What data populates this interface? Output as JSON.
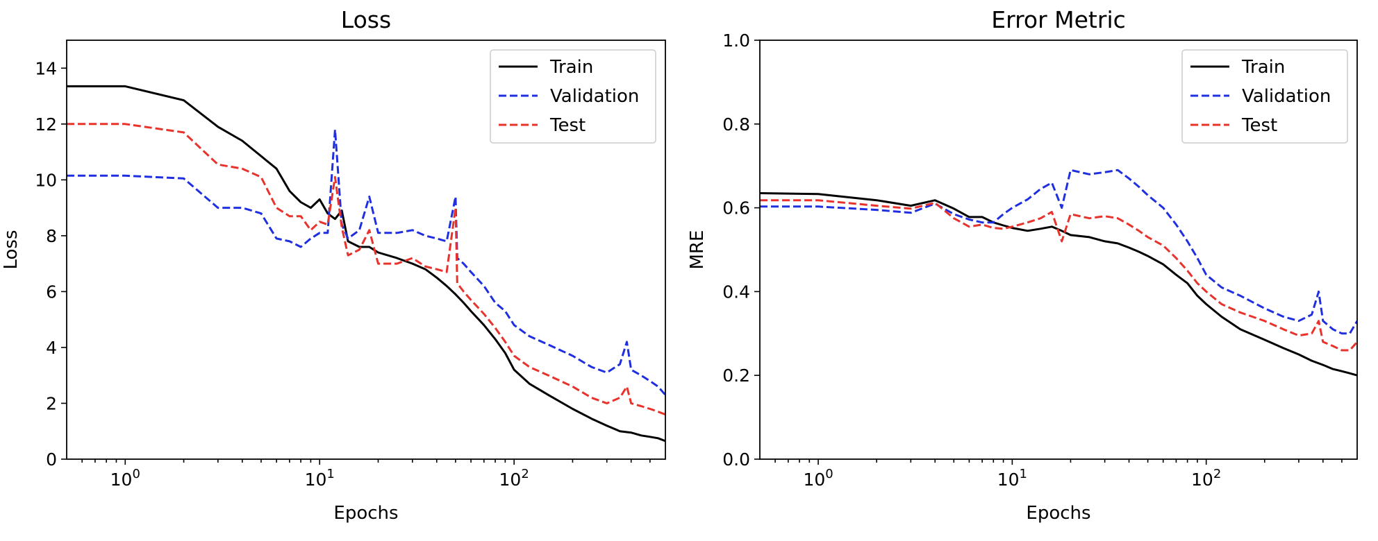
{
  "chart_data": [
    {
      "type": "line",
      "title": "Loss",
      "xlabel": "Epochs",
      "ylabel": "Loss",
      "xscale": "log",
      "xlim": [
        0.5,
        600
      ],
      "ylim": [
        0,
        15
      ],
      "xticks": [
        {
          "value": 1,
          "base": "10",
          "exp": "0"
        },
        {
          "value": 10,
          "base": "10",
          "exp": "1"
        },
        {
          "value": 100,
          "base": "10",
          "exp": "2"
        }
      ],
      "yticks": [
        0,
        2,
        4,
        6,
        8,
        10,
        12,
        14
      ],
      "legend": "top-right",
      "grid": false,
      "series": [
        {
          "name": "Train",
          "color": "#000000",
          "dash": "solid",
          "points": [
            [
              0.5,
              13.35
            ],
            [
              1,
              13.35
            ],
            [
              2,
              12.85
            ],
            [
              3,
              11.9
            ],
            [
              4,
              11.4
            ],
            [
              6,
              10.4
            ],
            [
              7,
              9.6
            ],
            [
              8,
              9.2
            ],
            [
              9,
              9.0
            ],
            [
              10,
              9.3
            ],
            [
              11,
              8.8
            ],
            [
              12,
              8.6
            ],
            [
              13,
              8.9
            ],
            [
              14,
              7.8
            ],
            [
              16,
              7.6
            ],
            [
              18,
              7.6
            ],
            [
              20,
              7.4
            ],
            [
              25,
              7.2
            ],
            [
              30,
              7.0
            ],
            [
              35,
              6.8
            ],
            [
              40,
              6.5
            ],
            [
              45,
              6.2
            ],
            [
              50,
              5.9
            ],
            [
              55,
              5.6
            ],
            [
              60,
              5.3
            ],
            [
              70,
              4.8
            ],
            [
              80,
              4.3
            ],
            [
              90,
              3.8
            ],
            [
              100,
              3.2
            ],
            [
              120,
              2.7
            ],
            [
              150,
              2.3
            ],
            [
              200,
              1.8
            ],
            [
              250,
              1.45
            ],
            [
              300,
              1.2
            ],
            [
              350,
              1.0
            ],
            [
              400,
              0.95
            ],
            [
              450,
              0.85
            ],
            [
              500,
              0.8
            ],
            [
              550,
              0.75
            ],
            [
              600,
              0.65
            ]
          ]
        },
        {
          "name": "Validation",
          "color": "#1f2fe0",
          "dash": "dashed",
          "points": [
            [
              0.5,
              10.15
            ],
            [
              1,
              10.15
            ],
            [
              2,
              10.05
            ],
            [
              3,
              9.0
            ],
            [
              4,
              9.0
            ],
            [
              5,
              8.8
            ],
            [
              6,
              7.9
            ],
            [
              7,
              7.8
            ],
            [
              8,
              7.6
            ],
            [
              9,
              7.9
            ],
            [
              10,
              8.1
            ],
            [
              11,
              8.1
            ],
            [
              12,
              11.8
            ],
            [
              13,
              8.4
            ],
            [
              14,
              7.9
            ],
            [
              16,
              8.2
            ],
            [
              18,
              9.4
            ],
            [
              20,
              8.1
            ],
            [
              25,
              8.1
            ],
            [
              30,
              8.2
            ],
            [
              35,
              8.0
            ],
            [
              40,
              7.9
            ],
            [
              45,
              7.8
            ],
            [
              50,
              9.4
            ],
            [
              51,
              7.2
            ],
            [
              55,
              7.0
            ],
            [
              60,
              6.7
            ],
            [
              70,
              6.2
            ],
            [
              80,
              5.6
            ],
            [
              90,
              5.3
            ],
            [
              100,
              4.8
            ],
            [
              120,
              4.4
            ],
            [
              150,
              4.1
            ],
            [
              200,
              3.7
            ],
            [
              250,
              3.3
            ],
            [
              300,
              3.1
            ],
            [
              350,
              3.4
            ],
            [
              380,
              4.2
            ],
            [
              400,
              3.2
            ],
            [
              450,
              3.0
            ],
            [
              500,
              2.8
            ],
            [
              550,
              2.6
            ],
            [
              600,
              2.3
            ]
          ]
        },
        {
          "name": "Test",
          "color": "#e8322c",
          "dash": "dashed",
          "points": [
            [
              0.5,
              12.0
            ],
            [
              1,
              12.0
            ],
            [
              2,
              11.7
            ],
            [
              3,
              10.55
            ],
            [
              4,
              10.4
            ],
            [
              5,
              10.1
            ],
            [
              6,
              9.0
            ],
            [
              7,
              8.7
            ],
            [
              8,
              8.7
            ],
            [
              9,
              8.2
            ],
            [
              10,
              8.5
            ],
            [
              11,
              8.4
            ],
            [
              12,
              10.1
            ],
            [
              13,
              8.3
            ],
            [
              14,
              7.3
            ],
            [
              16,
              7.5
            ],
            [
              18,
              8.2
            ],
            [
              20,
              7.0
            ],
            [
              25,
              7.0
            ],
            [
              30,
              7.2
            ],
            [
              35,
              6.9
            ],
            [
              40,
              6.8
            ],
            [
              45,
              6.7
            ],
            [
              50,
              9.0
            ],
            [
              51,
              6.3
            ],
            [
              55,
              6.0
            ],
            [
              60,
              5.7
            ],
            [
              70,
              5.2
            ],
            [
              80,
              4.7
            ],
            [
              90,
              4.2
            ],
            [
              100,
              3.7
            ],
            [
              120,
              3.3
            ],
            [
              150,
              3.0
            ],
            [
              200,
              2.6
            ],
            [
              250,
              2.2
            ],
            [
              300,
              2.0
            ],
            [
              350,
              2.2
            ],
            [
              380,
              2.6
            ],
            [
              400,
              2.0
            ],
            [
              450,
              1.9
            ],
            [
              500,
              1.8
            ],
            [
              550,
              1.7
            ],
            [
              600,
              1.6
            ]
          ]
        }
      ]
    },
    {
      "type": "line",
      "title": "Error Metric",
      "xlabel": "Epochs",
      "ylabel": "MRE",
      "xscale": "log",
      "xlim": [
        0.5,
        600
      ],
      "ylim": [
        0,
        1.0
      ],
      "xticks": [
        {
          "value": 1,
          "base": "10",
          "exp": "0"
        },
        {
          "value": 10,
          "base": "10",
          "exp": "1"
        },
        {
          "value": 100,
          "base": "10",
          "exp": "2"
        }
      ],
      "yticks": [
        "0.0",
        "0.2",
        "0.4",
        "0.6",
        "0.8",
        "1.0"
      ],
      "legend": "top-right",
      "grid": false,
      "series": [
        {
          "name": "Train",
          "color": "#000000",
          "dash": "solid",
          "points": [
            [
              0.5,
              0.635
            ],
            [
              1,
              0.633
            ],
            [
              2,
              0.618
            ],
            [
              3,
              0.605
            ],
            [
              4,
              0.618
            ],
            [
              5,
              0.598
            ],
            [
              6,
              0.578
            ],
            [
              7,
              0.578
            ],
            [
              8,
              0.565
            ],
            [
              9,
              0.558
            ],
            [
              10,
              0.552
            ],
            [
              12,
              0.545
            ],
            [
              14,
              0.55
            ],
            [
              16,
              0.555
            ],
            [
              18,
              0.545
            ],
            [
              20,
              0.535
            ],
            [
              25,
              0.53
            ],
            [
              30,
              0.52
            ],
            [
              35,
              0.515
            ],
            [
              40,
              0.505
            ],
            [
              45,
              0.495
            ],
            [
              50,
              0.485
            ],
            [
              60,
              0.465
            ],
            [
              70,
              0.44
            ],
            [
              80,
              0.42
            ],
            [
              90,
              0.39
            ],
            [
              100,
              0.37
            ],
            [
              120,
              0.34
            ],
            [
              150,
              0.31
            ],
            [
              200,
              0.285
            ],
            [
              250,
              0.265
            ],
            [
              300,
              0.25
            ],
            [
              350,
              0.235
            ],
            [
              400,
              0.225
            ],
            [
              450,
              0.215
            ],
            [
              500,
              0.21
            ],
            [
              550,
              0.205
            ],
            [
              600,
              0.2
            ]
          ]
        },
        {
          "name": "Validation",
          "color": "#1f2fe0",
          "dash": "dashed",
          "points": [
            [
              0.5,
              0.603
            ],
            [
              1,
              0.603
            ],
            [
              2,
              0.595
            ],
            [
              3,
              0.588
            ],
            [
              4,
              0.61
            ],
            [
              5,
              0.585
            ],
            [
              6,
              0.572
            ],
            [
              7,
              0.565
            ],
            [
              8,
              0.565
            ],
            [
              9,
              0.585
            ],
            [
              10,
              0.6
            ],
            [
              12,
              0.62
            ],
            [
              14,
              0.645
            ],
            [
              16,
              0.66
            ],
            [
              18,
              0.6
            ],
            [
              20,
              0.69
            ],
            [
              25,
              0.68
            ],
            [
              30,
              0.685
            ],
            [
              35,
              0.69
            ],
            [
              40,
              0.67
            ],
            [
              45,
              0.65
            ],
            [
              50,
              0.63
            ],
            [
              60,
              0.6
            ],
            [
              70,
              0.56
            ],
            [
              80,
              0.52
            ],
            [
              90,
              0.48
            ],
            [
              100,
              0.44
            ],
            [
              120,
              0.41
            ],
            [
              150,
              0.39
            ],
            [
              200,
              0.36
            ],
            [
              250,
              0.34
            ],
            [
              300,
              0.33
            ],
            [
              350,
              0.345
            ],
            [
              380,
              0.4
            ],
            [
              400,
              0.33
            ],
            [
              450,
              0.31
            ],
            [
              500,
              0.3
            ],
            [
              550,
              0.3
            ],
            [
              600,
              0.33
            ]
          ]
        },
        {
          "name": "Test",
          "color": "#e8322c",
          "dash": "dashed",
          "points": [
            [
              0.5,
              0.618
            ],
            [
              1,
              0.618
            ],
            [
              2,
              0.605
            ],
            [
              3,
              0.598
            ],
            [
              4,
              0.612
            ],
            [
              5,
              0.575
            ],
            [
              6,
              0.555
            ],
            [
              7,
              0.56
            ],
            [
              8,
              0.552
            ],
            [
              9,
              0.55
            ],
            [
              10,
              0.555
            ],
            [
              12,
              0.565
            ],
            [
              14,
              0.575
            ],
            [
              16,
              0.59
            ],
            [
              18,
              0.52
            ],
            [
              20,
              0.585
            ],
            [
              25,
              0.575
            ],
            [
              30,
              0.58
            ],
            [
              35,
              0.575
            ],
            [
              40,
              0.56
            ],
            [
              45,
              0.545
            ],
            [
              50,
              0.53
            ],
            [
              60,
              0.51
            ],
            [
              70,
              0.48
            ],
            [
              80,
              0.45
            ],
            [
              90,
              0.42
            ],
            [
              100,
              0.4
            ],
            [
              120,
              0.37
            ],
            [
              150,
              0.35
            ],
            [
              200,
              0.33
            ],
            [
              250,
              0.31
            ],
            [
              300,
              0.295
            ],
            [
              350,
              0.3
            ],
            [
              380,
              0.33
            ],
            [
              400,
              0.28
            ],
            [
              450,
              0.27
            ],
            [
              500,
              0.26
            ],
            [
              550,
              0.26
            ],
            [
              600,
              0.28
            ]
          ]
        }
      ]
    }
  ]
}
